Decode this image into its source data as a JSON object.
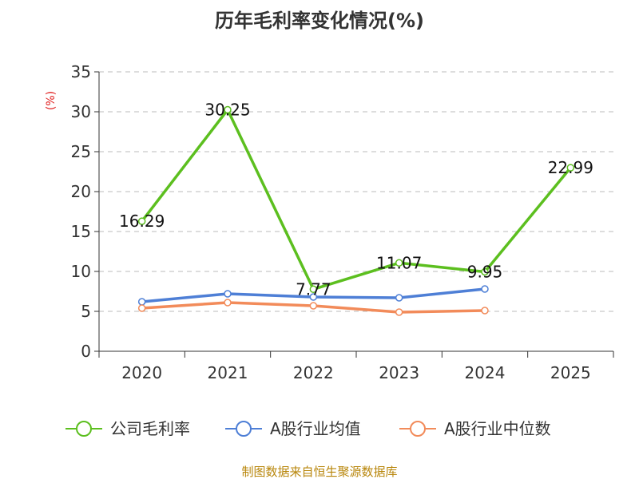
{
  "chart_data": {
    "type": "line",
    "title": "历年毛利率变化情况(%)",
    "ylabel": "(%)",
    "xlabel": "",
    "categories": [
      "2020",
      "2021",
      "2022",
      "2023",
      "2024",
      "2025"
    ],
    "ylim": [
      0,
      35
    ],
    "yticks": [
      "0",
      "5",
      "10",
      "15",
      "20",
      "25",
      "30",
      "35"
    ],
    "grid": true,
    "legend_position": "bottom",
    "series": [
      {
        "name": "公司毛利率",
        "color": "#5cbf1f",
        "values": [
          16.29,
          30.25,
          7.77,
          11.07,
          9.95,
          22.99
        ],
        "labels": [
          "16.29",
          "30.25",
          "7.77",
          "11.07",
          "9.95",
          "22.99"
        ]
      },
      {
        "name": "A股行业均值",
        "color": "#4e7fd6",
        "values": [
          6.2,
          7.2,
          6.8,
          6.7,
          7.8,
          null
        ]
      },
      {
        "name": "A股行业中位数",
        "color": "#f28b5a",
        "values": [
          5.4,
          6.1,
          5.7,
          4.9,
          5.1,
          null
        ]
      }
    ]
  },
  "source": "制图数据来自恒生聚源数据库"
}
